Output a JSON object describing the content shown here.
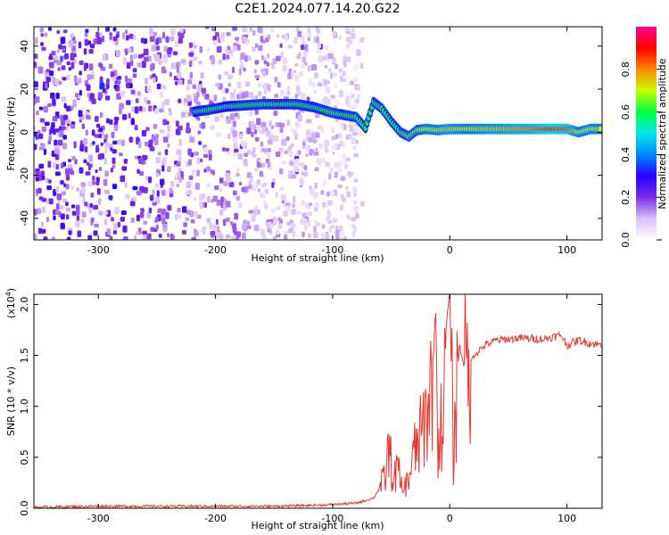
{
  "chart_data": [
    {
      "type": "heatmap",
      "title": "C2E1.2024.077.14.20.G22",
      "xlabel": "Height of straight line (km)",
      "ylabel": "Frequency (Hz)",
      "xlim": [
        -355,
        130
      ],
      "ylim": [
        -50,
        49
      ],
      "xticks": [
        -300,
        -200,
        -100,
        0,
        100
      ],
      "yticks": [
        -40,
        -20,
        0,
        20,
        40
      ],
      "colorbar": {
        "label": "Normalized spectral amplitude",
        "range": [
          0.0,
          1.0
        ],
        "ticks": [
          0.0,
          0.2,
          0.4,
          0.6,
          0.8
        ],
        "colors": [
          "#ffffff",
          "#d8c0f4",
          "#7a2ce8",
          "#2a00ff",
          "#0088ff",
          "#00e8e8",
          "#00ff40",
          "#c8ff00",
          "#ff8800",
          "#ff0000",
          "#ff0090"
        ]
      },
      "noise_band_extent_km": [
        -355,
        -75
      ],
      "ridge": [
        {
          "x": -218,
          "y": 9.5,
          "a": 0.55
        },
        {
          "x": -205,
          "y": 10.5,
          "a": 0.6
        },
        {
          "x": -190,
          "y": 12,
          "a": 0.55
        },
        {
          "x": -175,
          "y": 12.5,
          "a": 0.6
        },
        {
          "x": -160,
          "y": 13,
          "a": 0.6
        },
        {
          "x": -145,
          "y": 13,
          "a": 0.58
        },
        {
          "x": -130,
          "y": 13,
          "a": 0.6
        },
        {
          "x": -115,
          "y": 11.5,
          "a": 0.58
        },
        {
          "x": -100,
          "y": 9,
          "a": 0.62
        },
        {
          "x": -90,
          "y": 8,
          "a": 0.6
        },
        {
          "x": -80,
          "y": 7,
          "a": 0.62
        },
        {
          "x": -72,
          "y": 2,
          "a": 0.6
        },
        {
          "x": -65,
          "y": 14,
          "a": 0.6
        },
        {
          "x": -58,
          "y": 11,
          "a": 0.62
        },
        {
          "x": -50,
          "y": 5,
          "a": 0.6
        },
        {
          "x": -42,
          "y": 0,
          "a": 0.62
        },
        {
          "x": -35,
          "y": -2,
          "a": 0.65
        },
        {
          "x": -28,
          "y": 1,
          "a": 0.65
        },
        {
          "x": -20,
          "y": 1.5,
          "a": 0.7
        },
        {
          "x": -10,
          "y": 1,
          "a": 0.72
        },
        {
          "x": 0,
          "y": 1.5,
          "a": 0.75
        },
        {
          "x": 15,
          "y": 1.5,
          "a": 0.7
        },
        {
          "x": 30,
          "y": 1.5,
          "a": 0.75
        },
        {
          "x": 50,
          "y": 1.5,
          "a": 0.78
        },
        {
          "x": 70,
          "y": 1.5,
          "a": 0.82
        },
        {
          "x": 85,
          "y": 1.5,
          "a": 0.88
        },
        {
          "x": 100,
          "y": 1.5,
          "a": 0.85
        },
        {
          "x": 110,
          "y": 0,
          "a": 0.7
        },
        {
          "x": 120,
          "y": 1.5,
          "a": 0.72
        },
        {
          "x": 130,
          "y": 1.5,
          "a": 0.7
        }
      ]
    },
    {
      "type": "line",
      "xlabel": "Height of straight line (km)",
      "ylabel": "SNR (10 * v/v)",
      "y_multiplier": "(x10⁴)",
      "y_multiplier_base": "(x10",
      "y_multiplier_exp": "4",
      "y_multiplier_close": ")",
      "xlim": [
        -355,
        130
      ],
      "ylim": [
        0.0,
        2.1
      ],
      "xticks": [
        -300,
        -200,
        -100,
        0,
        100
      ],
      "yticks": [
        0.0,
        0.5,
        1.0,
        1.5,
        2.0
      ],
      "ytick_labels": [
        "0.0",
        "0.5",
        "1.0",
        "1.5",
        "2.0"
      ],
      "series": [
        {
          "color": "#e8362d",
          "points": [
            [
              -355,
              0.01
            ],
            [
              -300,
              0.02
            ],
            [
              -250,
              0.02
            ],
            [
              -200,
              0.02
            ],
            [
              -150,
              0.02
            ],
            [
              -110,
              0.03
            ],
            [
              -80,
              0.05
            ],
            [
              -65,
              0.1
            ],
            [
              -55,
              0.3
            ],
            [
              -52,
              0.6
            ],
            [
              -48,
              0.25
            ],
            [
              -45,
              0.4
            ],
            [
              -40,
              0.15
            ],
            [
              -35,
              0.3
            ],
            [
              -30,
              0.55
            ],
            [
              -25,
              0.7
            ],
            [
              -20,
              0.9
            ],
            [
              -15,
              1.3
            ],
            [
              -12,
              1.95
            ],
            [
              -10,
              0.6
            ],
            [
              -5,
              1.0
            ],
            [
              -3,
              1.8
            ],
            [
              0,
              2.1
            ],
            [
              3,
              0.5
            ],
            [
              8,
              1.6
            ],
            [
              15,
              1.3
            ],
            [
              20,
              1.5
            ],
            [
              25,
              1.55
            ],
            [
              30,
              1.6
            ],
            [
              40,
              1.65
            ],
            [
              60,
              1.67
            ],
            [
              80,
              1.66
            ],
            [
              95,
              1.7
            ],
            [
              100,
              1.6
            ],
            [
              110,
              1.65
            ],
            [
              120,
              1.62
            ],
            [
              130,
              1.6
            ]
          ]
        }
      ]
    }
  ]
}
